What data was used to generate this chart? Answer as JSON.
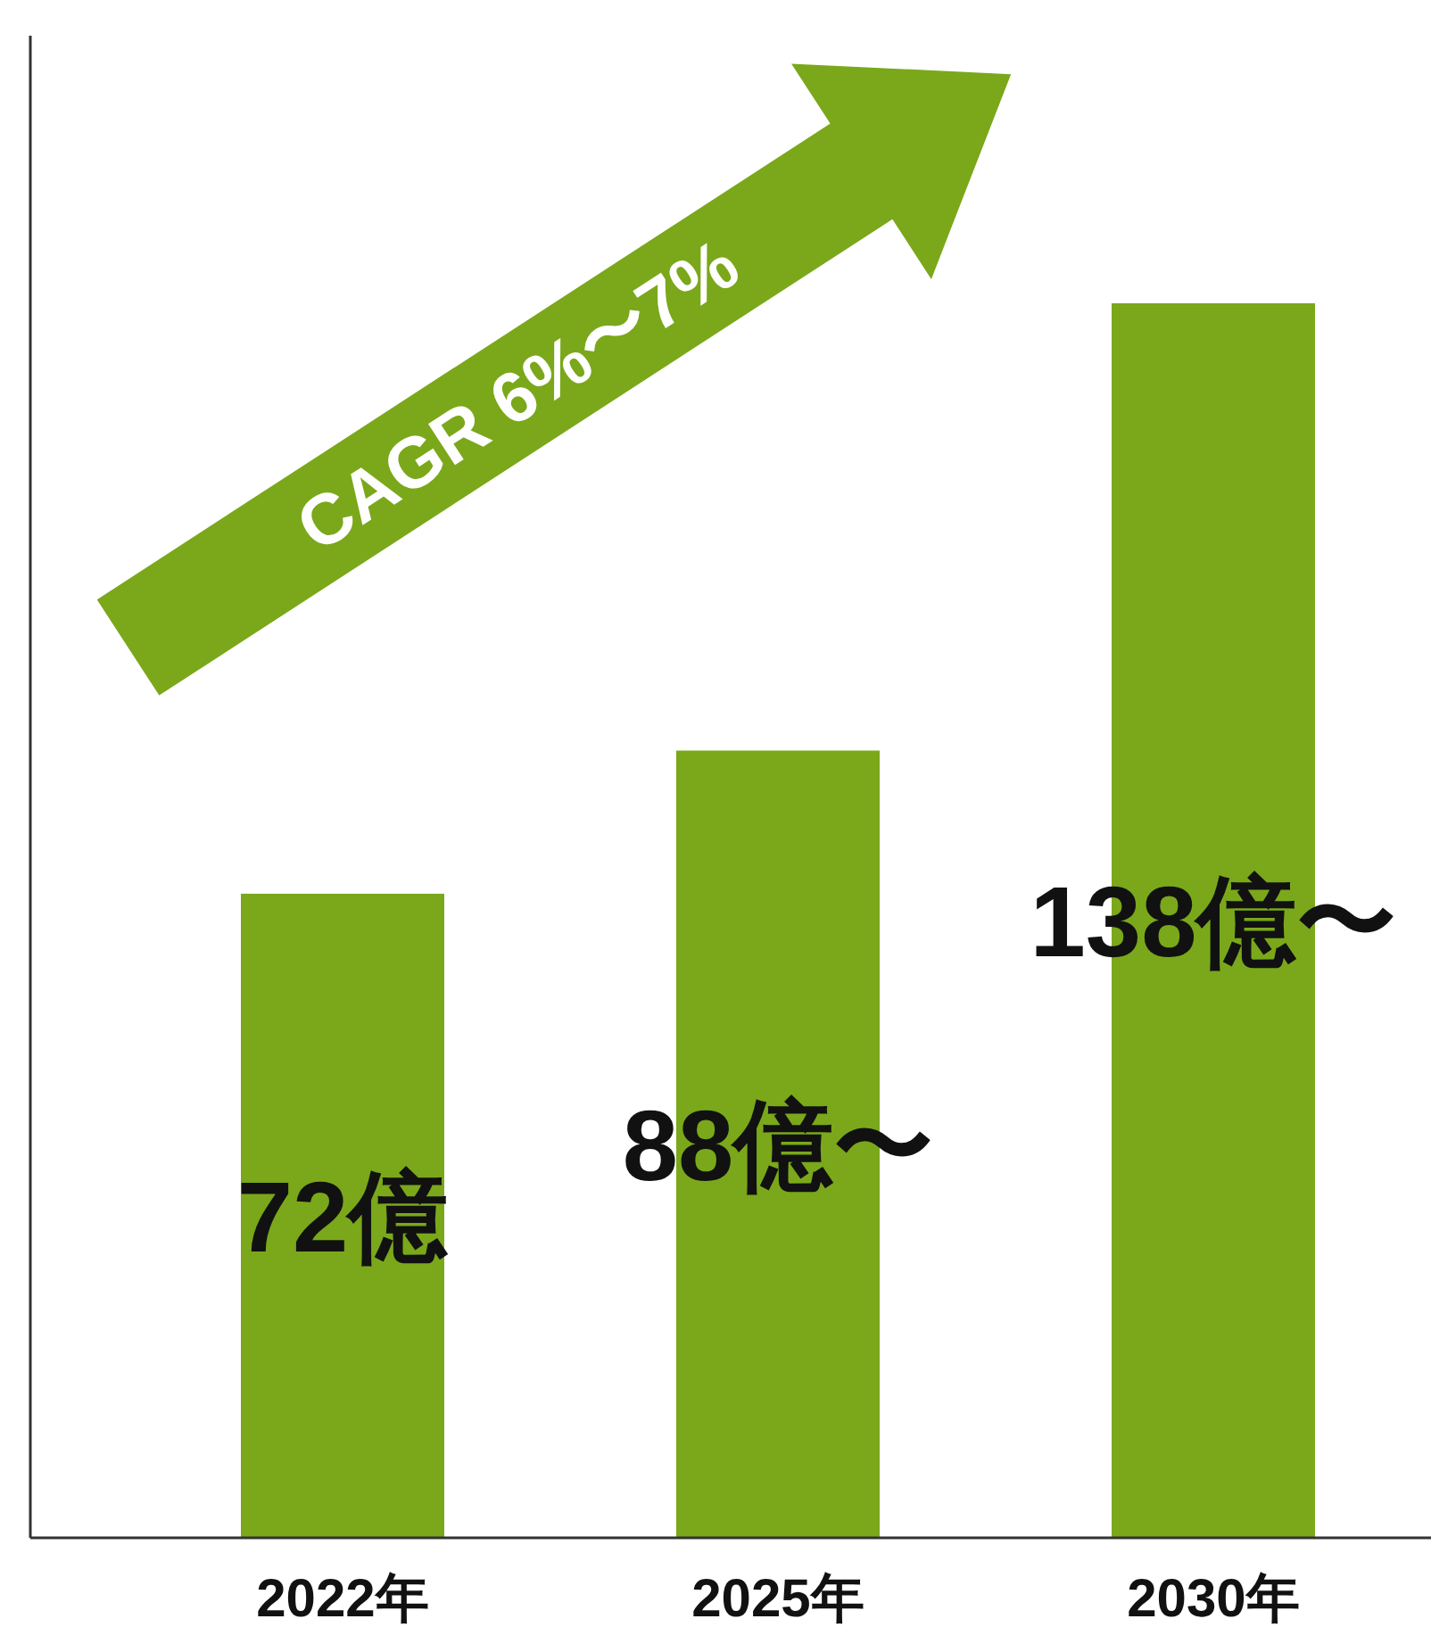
{
  "chart_data": {
    "type": "bar",
    "categories": [
      "2022年",
      "2025年",
      "2030年"
    ],
    "values": [
      72,
      88,
      138
    ],
    "value_labels": [
      "72億",
      "88億〜",
      "138億〜"
    ],
    "color": "#7aa81a",
    "annotations": [
      "CAGR 6%〜7%"
    ]
  }
}
